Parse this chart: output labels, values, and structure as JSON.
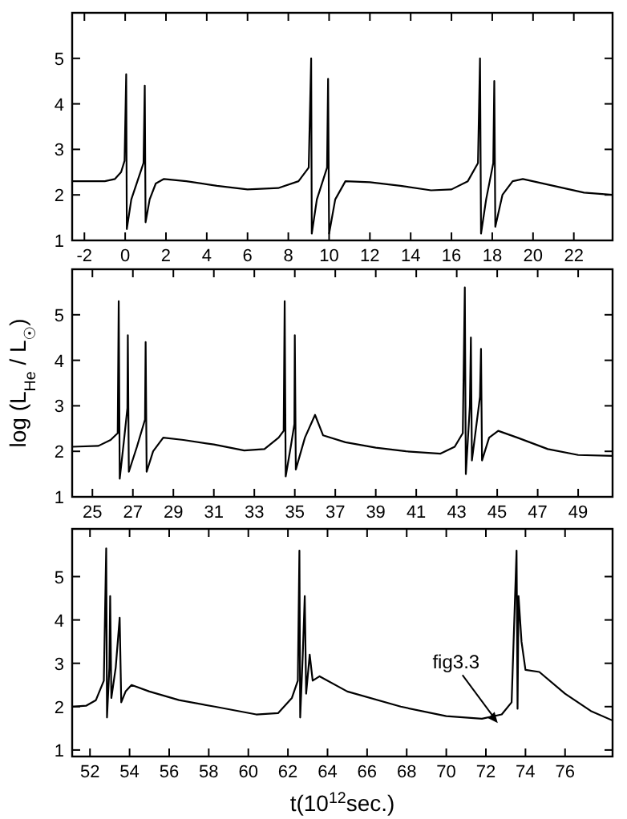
{
  "chart_data": [
    {
      "type": "line",
      "xlim": [
        -2.6,
        23.9
      ],
      "xticks": [
        -2,
        0,
        2,
        4,
        6,
        8,
        10,
        12,
        14,
        16,
        18,
        20,
        22
      ],
      "ylim": [
        1,
        6
      ],
      "yticks": [
        1,
        2,
        3,
        4,
        5
      ],
      "color": "#000000",
      "x": [
        -2.6,
        -1,
        -0.5,
        -0.2,
        -0.03,
        0.05,
        0.08,
        0.3,
        0.6,
        0.9,
        0.96,
        1.0,
        1.2,
        1.5,
        1.9,
        3,
        4.5,
        6,
        7.5,
        8.5,
        9.0,
        9.12,
        9.15,
        9.4,
        9.9,
        9.95,
        10.0,
        10.3,
        10.8,
        12,
        13.5,
        15,
        16,
        16.8,
        17.3,
        17.4,
        17.45,
        17.7,
        18.05,
        18.1,
        18.15,
        18.5,
        19.0,
        19.5,
        21,
        22.5,
        23.9
      ],
      "values": [
        2.3,
        2.3,
        2.35,
        2.5,
        2.75,
        4.65,
        1.25,
        1.9,
        2.3,
        2.7,
        4.4,
        1.4,
        1.9,
        2.25,
        2.35,
        2.3,
        2.2,
        2.12,
        2.15,
        2.3,
        2.6,
        5.0,
        1.15,
        1.9,
        2.6,
        4.55,
        1.15,
        1.9,
        2.3,
        2.28,
        2.2,
        2.1,
        2.12,
        2.3,
        2.7,
        5.0,
        1.15,
        1.9,
        2.7,
        4.5,
        1.3,
        2.0,
        2.3,
        2.35,
        2.2,
        2.05,
        2.0
      ]
    },
    {
      "type": "line",
      "xlim": [
        24,
        50.7
      ],
      "xticks": [
        25,
        27,
        29,
        31,
        33,
        35,
        37,
        39,
        41,
        43,
        45,
        47,
        49
      ],
      "ylim": [
        1,
        6
      ],
      "yticks": [
        1,
        2,
        3,
        4,
        5
      ],
      "color": "#000000",
      "ylabel": "log (L$_{He}$ / L$_{☉}$)",
      "x": [
        24,
        25.3,
        25.9,
        26.25,
        26.3,
        26.35,
        26.55,
        26.73,
        26.75,
        26.8,
        27.2,
        27.6,
        27.63,
        27.68,
        28.0,
        28.5,
        29.5,
        31,
        32.5,
        33.5,
        34.2,
        34.45,
        34.5,
        34.55,
        34.8,
        34.98,
        35.0,
        35.05,
        35.5,
        36.0,
        36.4,
        37.5,
        39,
        40.5,
        42.2,
        42.9,
        43.3,
        43.4,
        43.45,
        43.65,
        43.7,
        43.75,
        44.15,
        44.2,
        44.25,
        44.6,
        45.05,
        46,
        47.5,
        49,
        50.7
      ],
      "values": [
        2.1,
        2.12,
        2.25,
        2.4,
        5.3,
        1.4,
        2.2,
        2.95,
        4.55,
        1.55,
        2.1,
        2.7,
        4.4,
        1.55,
        2.0,
        2.3,
        2.25,
        2.15,
        2.02,
        2.05,
        2.3,
        2.45,
        5.3,
        1.45,
        2.1,
        2.6,
        4.55,
        1.6,
        2.3,
        2.8,
        2.35,
        2.2,
        2.08,
        2.0,
        1.95,
        2.1,
        2.4,
        5.6,
        1.5,
        3.0,
        4.5,
        1.8,
        3.2,
        4.25,
        1.8,
        2.3,
        2.45,
        2.3,
        2.05,
        1.92,
        1.9
      ]
    },
    {
      "type": "line",
      "xlim": [
        51.1,
        78.4
      ],
      "xticks": [
        52,
        54,
        56,
        58,
        60,
        62,
        64,
        66,
        68,
        70,
        72,
        74,
        76
      ],
      "ylim": [
        0.85,
        6.1
      ],
      "yticks": [
        1,
        2,
        3,
        4,
        5
      ],
      "color": "#000000",
      "xlabel": "t(10$^{12}$sec.)",
      "annotations": [
        {
          "text": "fig3.3",
          "x": 72.6,
          "y": 1.62
        }
      ],
      "x": [
        51.1,
        51.8,
        52.3,
        52.7,
        52.82,
        52.86,
        52.98,
        53.02,
        53.08,
        53.3,
        53.5,
        53.58,
        53.8,
        54.1,
        55,
        56.5,
        58.3,
        60.4,
        61.5,
        62.2,
        62.5,
        62.58,
        62.62,
        62.75,
        62.85,
        62.92,
        63.1,
        63.25,
        63.6,
        65,
        67.7,
        70,
        71.8,
        72.8,
        73.3,
        73.55,
        73.6,
        73.65,
        73.8,
        74.0,
        74.7,
        76,
        77.3,
        78.4
      ],
      "values": [
        2.0,
        2.02,
        2.15,
        2.6,
        5.65,
        1.75,
        2.9,
        4.55,
        2.2,
        2.9,
        4.05,
        2.1,
        2.35,
        2.5,
        2.35,
        2.15,
        2.0,
        1.82,
        1.85,
        2.2,
        2.6,
        5.6,
        1.75,
        3.2,
        4.55,
        2.3,
        3.2,
        2.6,
        2.7,
        2.35,
        2.0,
        1.78,
        1.72,
        1.82,
        2.1,
        5.6,
        1.95,
        4.55,
        3.5,
        2.85,
        2.8,
        2.3,
        1.9,
        1.68
      ]
    }
  ]
}
